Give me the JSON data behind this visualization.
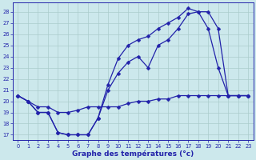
{
  "bg_color": "#cce8ec",
  "grid_color": "#aacccc",
  "line_color": "#2222aa",
  "xlabel": "Graphe des températures (°c)",
  "xlim": [
    -0.5,
    23.5
  ],
  "ylim": [
    16.5,
    28.8
  ],
  "yticks": [
    17,
    18,
    19,
    20,
    21,
    22,
    23,
    24,
    25,
    26,
    27,
    28
  ],
  "xticks": [
    0,
    1,
    2,
    3,
    4,
    5,
    6,
    7,
    8,
    9,
    10,
    11,
    12,
    13,
    14,
    15,
    16,
    17,
    18,
    19,
    20,
    21,
    22,
    23
  ],
  "line1_x": [
    0,
    1,
    2,
    3,
    4,
    5,
    6,
    7,
    8,
    9,
    10,
    11,
    12,
    13,
    14,
    15,
    16,
    17,
    18,
    19,
    20,
    21,
    22,
    23
  ],
  "line1_y": [
    20.5,
    20.0,
    19.5,
    19.5,
    19.0,
    19.0,
    19.2,
    19.5,
    19.5,
    19.5,
    19.5,
    19.8,
    20.0,
    20.0,
    20.2,
    20.2,
    20.5,
    20.5,
    20.5,
    20.5,
    20.5,
    20.5,
    20.5,
    20.5
  ],
  "line2_x": [
    0,
    1,
    2,
    3,
    4,
    5,
    6,
    7,
    8,
    9,
    10,
    11,
    12,
    13,
    14,
    15,
    16,
    17,
    18,
    19,
    20,
    21,
    22,
    23
  ],
  "line2_y": [
    20.5,
    20.0,
    19.0,
    19.0,
    17.2,
    17.0,
    17.0,
    17.0,
    18.5,
    21.0,
    22.5,
    23.5,
    24.0,
    23.0,
    25.0,
    25.5,
    26.5,
    27.8,
    28.0,
    26.5,
    23.0,
    20.5,
    20.5,
    20.5
  ],
  "line3_x": [
    0,
    1,
    2,
    3,
    4,
    5,
    6,
    7,
    8,
    9,
    10,
    11,
    12,
    13,
    14,
    15,
    16,
    17,
    18,
    19,
    20,
    21,
    22,
    23
  ],
  "line3_y": [
    20.5,
    20.0,
    19.0,
    19.0,
    17.2,
    17.0,
    17.0,
    17.0,
    18.5,
    21.5,
    23.8,
    25.0,
    25.5,
    25.8,
    26.5,
    27.0,
    27.5,
    28.3,
    28.0,
    28.0,
    26.5,
    20.5,
    20.5,
    20.5
  ]
}
